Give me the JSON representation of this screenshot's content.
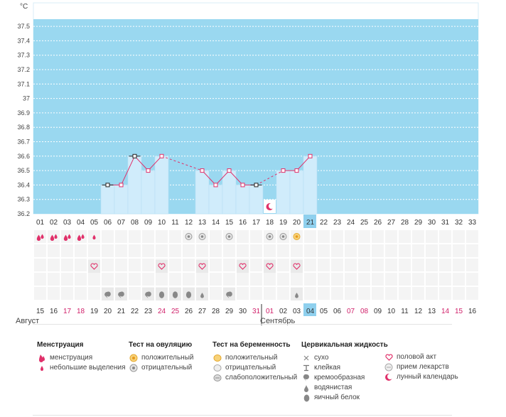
{
  "chart_data": {
    "type": "line",
    "unit": "°C",
    "ylim": [
      36.2,
      37.6
    ],
    "yticks": [
      36.2,
      36.3,
      36.4,
      36.5,
      36.6,
      36.7,
      36.8,
      36.9,
      37,
      37.1,
      37.2,
      37.3,
      37.4,
      37.5
    ],
    "cycle_days": [
      "01",
      "02",
      "03",
      "04",
      "05",
      "06",
      "07",
      "08",
      "09",
      "10",
      "11",
      "12",
      "13",
      "14",
      "15",
      "16",
      "17",
      "18",
      "19",
      "20",
      "21",
      "22",
      "23",
      "24",
      "25",
      "26",
      "27",
      "28",
      "29",
      "30",
      "31",
      "32",
      "33"
    ],
    "today_cycle_day": "21",
    "today_date": "04",
    "dates": [
      "15",
      "16",
      "17",
      "18",
      "19",
      "20",
      "21",
      "22",
      "23",
      "24",
      "25",
      "26",
      "27",
      "28",
      "29",
      "30",
      "31",
      "01",
      "02",
      "03",
      "04",
      "05",
      "06",
      "07",
      "08",
      "09",
      "10",
      "11",
      "12",
      "13",
      "14",
      "15",
      "16"
    ],
    "red_dates_index": [
      2,
      3,
      9,
      10,
      16,
      17,
      23,
      24,
      30,
      31
    ],
    "months": [
      {
        "name": "Август",
        "start_index": 0
      },
      {
        "name": "Сентябрь",
        "start_index": 17
      }
    ],
    "series": [
      {
        "values": [
          null,
          null,
          null,
          null,
          null,
          36.4,
          36.4,
          36.6,
          36.5,
          36.6,
          null,
          null,
          36.5,
          36.4,
          36.5,
          36.4,
          36.4,
          null,
          36.5,
          36.5,
          36.6,
          null,
          null,
          null,
          null,
          null,
          null,
          null,
          null,
          null,
          null,
          null,
          null
        ]
      }
    ],
    "black_markers_index": [
      5,
      7,
      16
    ],
    "menstruation_heavy_index": [
      0,
      1,
      2,
      3
    ],
    "menstruation_light_index": [
      4
    ],
    "ovulation_negative_index": [
      11,
      12,
      14,
      17,
      18
    ],
    "ovulation_positive_index": [
      19
    ],
    "intercourse_index": [
      4,
      9,
      12,
      15,
      17,
      19
    ],
    "fluid": [
      {
        "i": 5,
        "t": "cream"
      },
      {
        "i": 6,
        "t": "cream"
      },
      {
        "i": 8,
        "t": "cream"
      },
      {
        "i": 9,
        "t": "egg"
      },
      {
        "i": 10,
        "t": "egg"
      },
      {
        "i": 11,
        "t": "egg"
      },
      {
        "i": 12,
        "t": "water"
      },
      {
        "i": 14,
        "t": "cream"
      },
      {
        "i": 19,
        "t": "water"
      }
    ],
    "lunar_index": [
      17
    ]
  },
  "legend": {
    "menstruation": {
      "title": "Менструация",
      "items": [
        "менструация",
        "небольшие выделения"
      ]
    },
    "ovulation": {
      "title": "Тест на овуляцию",
      "items": [
        "положительный",
        "отрицательный"
      ]
    },
    "pregnancy": {
      "title": "Тест на беременность",
      "items": [
        "положительный",
        "отрицательный",
        "слабоположительный"
      ]
    },
    "fluid": {
      "title": "Цервикальная жидкость",
      "items": [
        "сухо",
        "клейкая",
        "кремообразная",
        "водянистая",
        "яичный белок"
      ]
    },
    "other": {
      "items": [
        "половой акт",
        "прием лекарств",
        "лунный календарь"
      ]
    }
  },
  "colors": {
    "plot_bg": "#9ad8f0",
    "bar": "#d0ecfb",
    "today": "#8fd0ee",
    "line": "#e0306a",
    "red_text": "#d0206a",
    "grid_row": "#f4f4f4"
  }
}
